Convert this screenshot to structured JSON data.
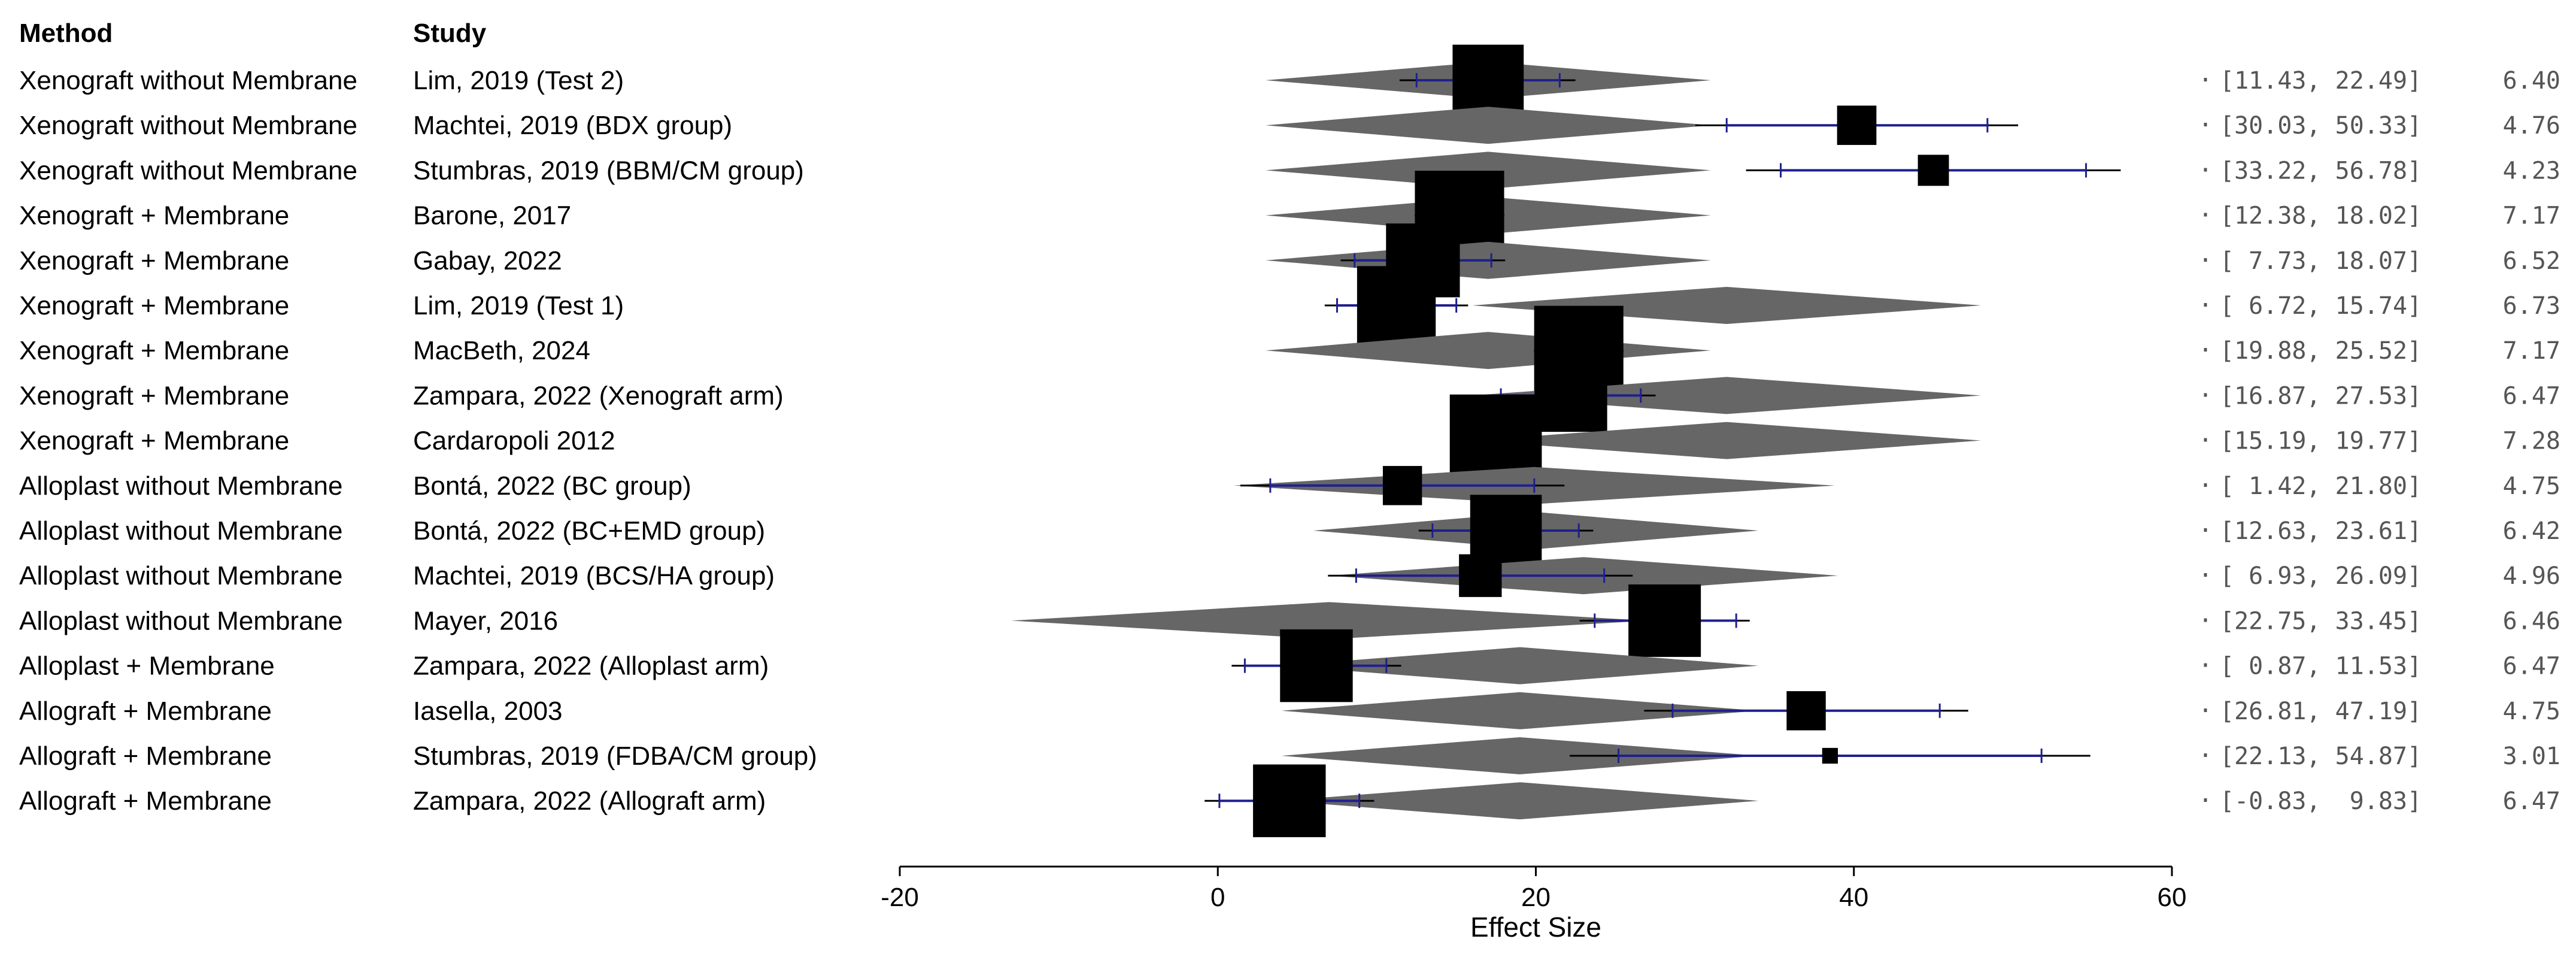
{
  "chart_data": {
    "type": "forest",
    "headers": {
      "method": "Method",
      "study": "Study"
    },
    "xlabel": "Effect Size",
    "xlim": [
      -20,
      60
    ],
    "xticks": [
      -20,
      0,
      20,
      40,
      60
    ],
    "colors": {
      "diamond": "#666666",
      "box": "#000000",
      "ci_line": "#1f1f8f",
      "ci_tail": "#000000"
    },
    "rows": [
      {
        "method": "Xenograft without Membrane",
        "study": "Lim, 2019 (Test 2)",
        "est": 17.0,
        "lo": 11.43,
        "hi": 22.49,
        "ci_text": "[11.43, 22.49]",
        "weight": "6.40",
        "band_lo": 12.5,
        "band_hi": 21.5,
        "dia": [
          3,
          17,
          31
        ]
      },
      {
        "method": "Xenograft without Membrane",
        "study": "Machtei, 2019 (BDX group)",
        "est": 40.18,
        "lo": 30.03,
        "hi": 50.33,
        "ci_text": "[30.03, 50.33]",
        "weight": "4.76",
        "band_lo": 32.0,
        "band_hi": 48.4,
        "dia": [
          3,
          17,
          31
        ]
      },
      {
        "method": "Xenograft without Membrane",
        "study": "Stumbras, 2019 (BBM/CM group)",
        "est": 45.0,
        "lo": 33.22,
        "hi": 56.78,
        "ci_text": "[33.22, 56.78]",
        "weight": "4.23",
        "band_lo": 35.4,
        "band_hi": 54.6,
        "dia": [
          3,
          17,
          31
        ]
      },
      {
        "method": "Xenograft + Membrane",
        "study": "Barone, 2017",
        "est": 15.2,
        "lo": 12.38,
        "hi": 18.02,
        "ci_text": "[12.38, 18.02]",
        "weight": "7.17",
        "band_lo": 12.8,
        "band_hi": 17.6,
        "dia": [
          3,
          17,
          31
        ]
      },
      {
        "method": "Xenograft + Membrane",
        "study": "Gabay, 2022",
        "est": 12.9,
        "lo": 7.73,
        "hi": 18.07,
        "ci_text": "[ 7.73, 18.07]",
        "weight": "6.52",
        "band_lo": 8.6,
        "band_hi": 17.2,
        "dia": [
          3,
          17,
          31
        ]
      },
      {
        "method": "Xenograft + Membrane",
        "study": "Lim, 2019 (Test 1)",
        "est": 11.23,
        "lo": 6.72,
        "hi": 15.74,
        "ci_text": "[ 6.72, 15.74]",
        "weight": "6.73",
        "band_lo": 7.5,
        "band_hi": 15.0,
        "dia": [
          16,
          32,
          48
        ]
      },
      {
        "method": "Xenograft + Membrane",
        "study": "MacBeth, 2024",
        "est": 22.7,
        "lo": 19.88,
        "hi": 25.52,
        "ci_text": "[19.88, 25.52]",
        "weight": "7.17",
        "band_lo": 20.3,
        "band_hi": 25.1,
        "dia": [
          3,
          17,
          31
        ]
      },
      {
        "method": "Xenograft + Membrane",
        "study": "Zampara, 2022 (Xenograft arm)",
        "est": 22.2,
        "lo": 16.87,
        "hi": 27.53,
        "ci_text": "[16.87, 27.53]",
        "weight": "6.47",
        "band_lo": 17.8,
        "band_hi": 26.6,
        "dia": [
          16,
          32,
          48
        ]
      },
      {
        "method": "Xenograft + Membrane",
        "study": "Cardaropoli 2012",
        "est": 17.48,
        "lo": 15.19,
        "hi": 19.77,
        "ci_text": "[15.19, 19.77]",
        "weight": "7.28",
        "band_lo": 15.6,
        "band_hi": 19.4,
        "dia": [
          16,
          32,
          48
        ]
      },
      {
        "method": "Alloplast without Membrane",
        "study": "Bontá, 2022 (BC group)",
        "est": 11.61,
        "lo": 1.42,
        "hi": 21.8,
        "ci_text": "[ 1.42, 21.80]",
        "weight": "4.75",
        "band_lo": 3.3,
        "band_hi": 19.9,
        "dia": [
          1,
          19.9,
          38.8
        ]
      },
      {
        "method": "Alloplast without Membrane",
        "study": "Bontá, 2022 (BC+EMD group)",
        "est": 18.12,
        "lo": 12.63,
        "hi": 23.61,
        "ci_text": "[12.63, 23.61]",
        "weight": "6.42",
        "band_lo": 13.5,
        "band_hi": 22.7,
        "dia": [
          6,
          20,
          34
        ]
      },
      {
        "method": "Alloplast without Membrane",
        "study": "Machtei, 2019 (BCS/HA group)",
        "est": 16.51,
        "lo": 6.93,
        "hi": 26.09,
        "ci_text": "[ 6.93, 26.09]",
        "weight": "4.96",
        "band_lo": 8.7,
        "band_hi": 24.3,
        "dia": [
          7,
          23,
          39
        ]
      },
      {
        "method": "Alloplast without Membrane",
        "study": "Mayer, 2016",
        "est": 28.1,
        "lo": 22.75,
        "hi": 33.45,
        "ci_text": "[22.75, 33.45]",
        "weight": "6.46",
        "band_lo": 23.7,
        "band_hi": 32.6,
        "dia": [
          -13,
          7,
          27
        ]
      },
      {
        "method": "Alloplast + Membrane",
        "study": "Zampara, 2022 (Alloplast arm)",
        "est": 6.2,
        "lo": 0.87,
        "hi": 11.53,
        "ci_text": "[ 0.87, 11.53]",
        "weight": "6.47",
        "band_lo": 1.7,
        "band_hi": 10.6,
        "dia": [
          4,
          19,
          34
        ]
      },
      {
        "method": "Allograft + Membrane",
        "study": "Iasella, 2003",
        "est": 37.0,
        "lo": 26.81,
        "hi": 47.19,
        "ci_text": "[26.81, 47.19]",
        "weight": "4.75",
        "band_lo": 28.6,
        "band_hi": 45.4,
        "dia": [
          4,
          19,
          34
        ]
      },
      {
        "method": "Allograft + Membrane",
        "study": "Stumbras, 2019 (FDBA/CM group)",
        "est": 38.5,
        "lo": 22.13,
        "hi": 54.87,
        "ci_text": "[22.13, 54.87]",
        "weight": "3.01",
        "band_lo": 25.2,
        "band_hi": 51.8,
        "dia": [
          4,
          19,
          34
        ]
      },
      {
        "method": "Allograft + Membrane",
        "study": "Zampara, 2022 (Allograft arm)",
        "est": 4.5,
        "lo": -0.83,
        "hi": 9.83,
        "ci_text": "[-0.83,  9.83]",
        "weight": "6.47",
        "band_lo": 0.1,
        "band_hi": 8.9,
        "dia": [
          4,
          19,
          34
        ]
      }
    ]
  }
}
